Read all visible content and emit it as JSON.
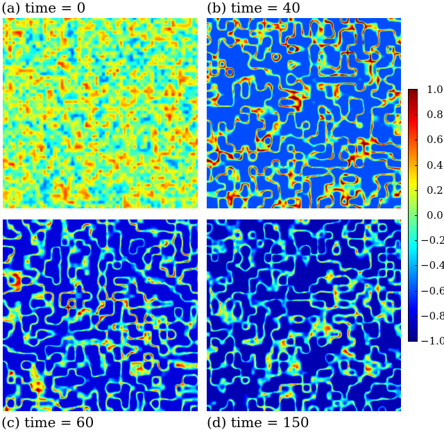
{
  "panels": [
    {
      "label": "(a) time = 0",
      "time": 0,
      "mean_level": 0.05,
      "spread": 0.45
    },
    {
      "label": "(b) time = 40",
      "time": 40,
      "mean_level": -0.6,
      "spread": 0.55
    },
    {
      "label": "(c) time = 60",
      "time": 60,
      "mean_level": -0.82,
      "spread": 0.45
    },
    {
      "label": "(d) time = 150",
      "time": 150,
      "mean_level": -0.9,
      "spread": 0.4
    }
  ],
  "colorbar": {
    "colormap": "jet",
    "range": [
      -1.0,
      1.0
    ],
    "ticks": [
      "1.0",
      "0.8",
      "0.6",
      "0.4",
      "0.2",
      "0.0",
      "−0.2",
      "−0.4",
      "−0.6",
      "−0.8",
      "−1.0"
    ]
  }
}
